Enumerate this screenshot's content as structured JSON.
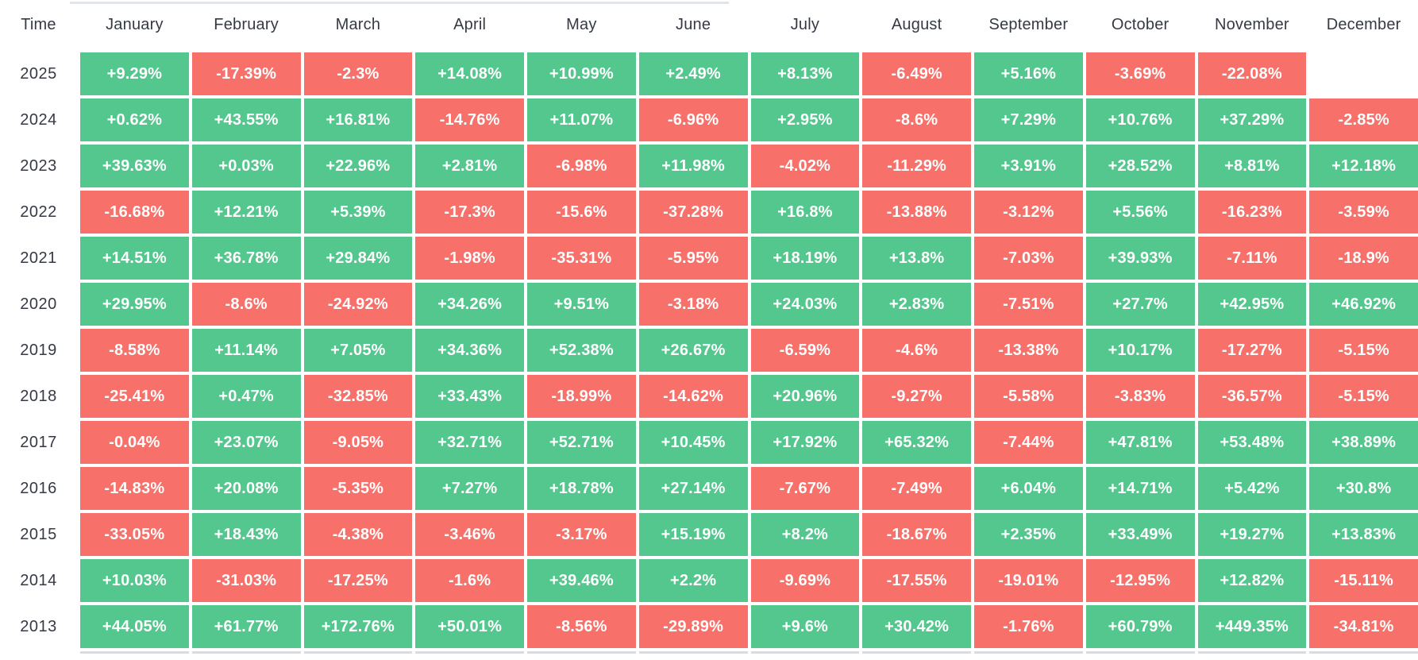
{
  "chart_data": {
    "type": "heatmap",
    "title": "",
    "time_label": "Time",
    "columns": [
      "January",
      "February",
      "March",
      "April",
      "May",
      "June",
      "July",
      "August",
      "September",
      "October",
      "November",
      "December"
    ],
    "rows": [
      {
        "year": "2025",
        "values": [
          "+9.29%",
          "-17.39%",
          "-2.3%",
          "+14.08%",
          "+10.99%",
          "+2.49%",
          "+8.13%",
          "-6.49%",
          "+5.16%",
          "-3.69%",
          "-22.08%",
          ""
        ]
      },
      {
        "year": "2024",
        "values": [
          "+0.62%",
          "+43.55%",
          "+16.81%",
          "-14.76%",
          "+11.07%",
          "-6.96%",
          "+2.95%",
          "-8.6%",
          "+7.29%",
          "+10.76%",
          "+37.29%",
          "-2.85%"
        ]
      },
      {
        "year": "2023",
        "values": [
          "+39.63%",
          "+0.03%",
          "+22.96%",
          "+2.81%",
          "-6.98%",
          "+11.98%",
          "-4.02%",
          "-11.29%",
          "+3.91%",
          "+28.52%",
          "+8.81%",
          "+12.18%"
        ]
      },
      {
        "year": "2022",
        "values": [
          "-16.68%",
          "+12.21%",
          "+5.39%",
          "-17.3%",
          "-15.6%",
          "-37.28%",
          "+16.8%",
          "-13.88%",
          "-3.12%",
          "+5.56%",
          "-16.23%",
          "-3.59%"
        ]
      },
      {
        "year": "2021",
        "values": [
          "+14.51%",
          "+36.78%",
          "+29.84%",
          "-1.98%",
          "-35.31%",
          "-5.95%",
          "+18.19%",
          "+13.8%",
          "-7.03%",
          "+39.93%",
          "-7.11%",
          "-18.9%"
        ]
      },
      {
        "year": "2020",
        "values": [
          "+29.95%",
          "-8.6%",
          "-24.92%",
          "+34.26%",
          "+9.51%",
          "-3.18%",
          "+24.03%",
          "+2.83%",
          "-7.51%",
          "+27.7%",
          "+42.95%",
          "+46.92%"
        ]
      },
      {
        "year": "2019",
        "values": [
          "-8.58%",
          "+11.14%",
          "+7.05%",
          "+34.36%",
          "+52.38%",
          "+26.67%",
          "-6.59%",
          "-4.6%",
          "-13.38%",
          "+10.17%",
          "-17.27%",
          "-5.15%"
        ]
      },
      {
        "year": "2018",
        "values": [
          "-25.41%",
          "+0.47%",
          "-32.85%",
          "+33.43%",
          "-18.99%",
          "-14.62%",
          "+20.96%",
          "-9.27%",
          "-5.58%",
          "-3.83%",
          "-36.57%",
          "-5.15%"
        ]
      },
      {
        "year": "2017",
        "values": [
          "-0.04%",
          "+23.07%",
          "-9.05%",
          "+32.71%",
          "+52.71%",
          "+10.45%",
          "+17.92%",
          "+65.32%",
          "-7.44%",
          "+47.81%",
          "+53.48%",
          "+38.89%"
        ]
      },
      {
        "year": "2016",
        "values": [
          "-14.83%",
          "+20.08%",
          "-5.35%",
          "+7.27%",
          "+18.78%",
          "+27.14%",
          "-7.67%",
          "-7.49%",
          "+6.04%",
          "+14.71%",
          "+5.42%",
          "+30.8%"
        ]
      },
      {
        "year": "2015",
        "values": [
          "-33.05%",
          "+18.43%",
          "-4.38%",
          "-3.46%",
          "-3.17%",
          "+15.19%",
          "+8.2%",
          "-18.67%",
          "+2.35%",
          "+33.49%",
          "+19.27%",
          "+13.83%"
        ]
      },
      {
        "year": "2014",
        "values": [
          "+10.03%",
          "-31.03%",
          "-17.25%",
          "-1.6%",
          "+39.46%",
          "+2.2%",
          "-9.69%",
          "-17.55%",
          "-19.01%",
          "-12.95%",
          "+12.82%",
          "-15.11%"
        ]
      },
      {
        "year": "2013",
        "values": [
          "+44.05%",
          "+61.77%",
          "+172.76%",
          "+50.01%",
          "-8.56%",
          "-29.89%",
          "+9.6%",
          "+30.42%",
          "-1.76%",
          "+60.79%",
          "+449.35%",
          "-34.81%"
        ]
      }
    ],
    "positive_color": "#53c78d",
    "negative_color": "#f7706a",
    "header_text_color": "#363a45",
    "value_text_color": "#ffffff",
    "divider_color": "#e1e4ea",
    "edge_strip_color": "#d8dbe0",
    "legend_position": "none",
    "grid": "off"
  }
}
